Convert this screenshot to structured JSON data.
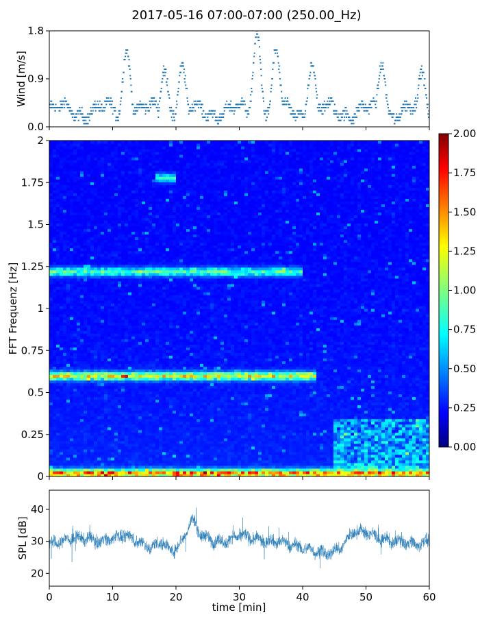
{
  "title": "2017-05-16 07:00-07:00 (250.00_Hz)",
  "chart_data": [
    {
      "id": "wind",
      "type": "scatter",
      "title": "",
      "ylabel": "Wind [m/s]",
      "xlabel": "",
      "xlim": [
        0,
        60
      ],
      "ylim": [
        0,
        1.8
      ],
      "yticks": [
        0.0,
        0.9,
        1.8
      ],
      "ytick_labels": [
        "0.0",
        "0.9",
        "1.8"
      ],
      "marker_color": "#1f77b4",
      "value_range": [
        0,
        1.8
      ],
      "peaks": [
        {
          "x": 12.2,
          "y": 1.5
        },
        {
          "x": 18.2,
          "y": 1.1
        },
        {
          "x": 21.0,
          "y": 1.2
        },
        {
          "x": 32.8,
          "y": 1.8
        },
        {
          "x": 35.8,
          "y": 1.5
        },
        {
          "x": 41.5,
          "y": 1.2
        },
        {
          "x": 52.5,
          "y": 1.2
        },
        {
          "x": 58.8,
          "y": 1.1
        }
      ]
    },
    {
      "id": "spectrogram",
      "type": "heatmap",
      "title": "",
      "ylabel": "FFT Frequenz [Hz]",
      "xlabel": "",
      "xlim": [
        0,
        60
      ],
      "ylim": [
        0,
        2
      ],
      "yticks": [
        0,
        0.25,
        0.5,
        0.75,
        1,
        1.25,
        1.5,
        1.75,
        2
      ],
      "ytick_labels": [
        "0",
        "0.25",
        "0.5",
        "0.75",
        "1",
        "1.25",
        "1.5",
        "1.75",
        "2"
      ],
      "colormap": "jet",
      "colorbar_range": [
        0,
        2
      ],
      "colorbar_ticks": [
        0.0,
        0.25,
        0.5,
        0.75,
        1.0,
        1.25,
        1.5,
        1.75,
        2.0
      ],
      "colorbar_tick_labels": [
        "0.00",
        "0.25",
        "0.50",
        "0.75",
        "1.00",
        "1.25",
        "1.50",
        "1.75",
        "2.00"
      ],
      "features": [
        {
          "label": "band",
          "freq_hz": 0.6,
          "x_range": [
            0,
            42
          ],
          "level": 1.0
        },
        {
          "label": "band",
          "freq_hz": 1.22,
          "x_range": [
            0,
            40
          ],
          "level": 0.7
        },
        {
          "label": "band",
          "freq_hz": 1.78,
          "x_range": [
            17,
            20
          ],
          "level": 0.6
        },
        {
          "label": "band",
          "freq_hz": 0.02,
          "x_range": [
            0,
            60
          ],
          "level": 1.3
        },
        {
          "label": "region",
          "freq_hz_range": [
            0.05,
            0.35
          ],
          "x_range": [
            45,
            60
          ],
          "level": 0.6
        }
      ]
    },
    {
      "id": "spl",
      "type": "line",
      "title": "",
      "ylabel": "SPL [dB]",
      "xlabel": "time [min]",
      "xlim": [
        0,
        60
      ],
      "ylim": [
        16,
        46
      ],
      "yticks": [
        20,
        30,
        40
      ],
      "ytick_labels": [
        "20",
        "30",
        "40"
      ],
      "xticks": [
        0,
        10,
        20,
        30,
        40,
        50,
        60
      ],
      "xtick_labels": [
        "0",
        "10",
        "20",
        "30",
        "40",
        "50",
        "60"
      ],
      "line_color": "#1f77b4",
      "envelope": [
        {
          "x": 0,
          "y": 29
        },
        {
          "x": 2,
          "y": 30
        },
        {
          "x": 4,
          "y": 31
        },
        {
          "x": 6,
          "y": 31
        },
        {
          "x": 8,
          "y": 30
        },
        {
          "x": 10,
          "y": 31
        },
        {
          "x": 12,
          "y": 32
        },
        {
          "x": 14,
          "y": 30
        },
        {
          "x": 16,
          "y": 28
        },
        {
          "x": 18,
          "y": 30
        },
        {
          "x": 19,
          "y": 27
        },
        {
          "x": 20,
          "y": 28
        },
        {
          "x": 21,
          "y": 30
        },
        {
          "x": 22.5,
          "y": 37
        },
        {
          "x": 24,
          "y": 32
        },
        {
          "x": 26,
          "y": 30
        },
        {
          "x": 28,
          "y": 30
        },
        {
          "x": 30,
          "y": 32
        },
        {
          "x": 32,
          "y": 31
        },
        {
          "x": 34,
          "y": 30
        },
        {
          "x": 36,
          "y": 30
        },
        {
          "x": 38,
          "y": 29
        },
        {
          "x": 40,
          "y": 28
        },
        {
          "x": 42,
          "y": 27
        },
        {
          "x": 44,
          "y": 26
        },
        {
          "x": 46,
          "y": 28
        },
        {
          "x": 48,
          "y": 33
        },
        {
          "x": 50,
          "y": 33
        },
        {
          "x": 52,
          "y": 31
        },
        {
          "x": 54,
          "y": 30
        },
        {
          "x": 56,
          "y": 30
        },
        {
          "x": 58,
          "y": 29
        },
        {
          "x": 60,
          "y": 30
        }
      ]
    }
  ]
}
